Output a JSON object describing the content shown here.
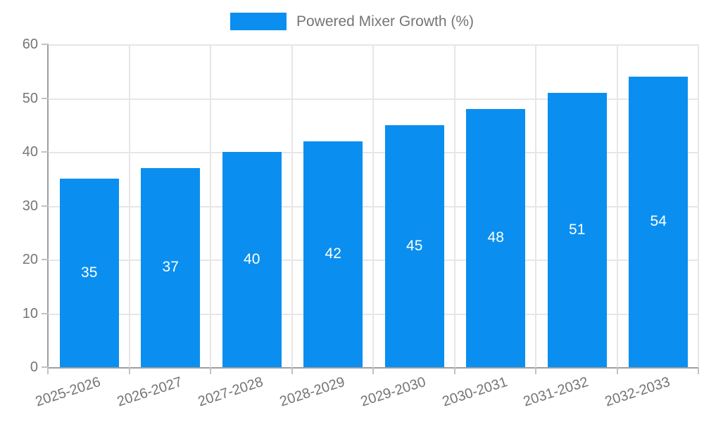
{
  "legend": {
    "label": "Powered Mixer Growth (%)"
  },
  "chart_data": {
    "type": "bar",
    "title": "",
    "xlabel": "",
    "ylabel": "",
    "categories": [
      "2025-2026",
      "2026-2027",
      "2027-2028",
      "2028-2029",
      "2029-2030",
      "2030-2031",
      "2031-2032",
      "2032-2033"
    ],
    "series": [
      {
        "name": "Powered Mixer Growth (%)",
        "values": [
          35,
          37,
          40,
          42,
          45,
          48,
          51,
          54
        ]
      }
    ],
    "ylim": [
      0,
      60
    ],
    "y_ticks": [
      0,
      10,
      20,
      30,
      40,
      50,
      60
    ],
    "grid": true,
    "legend_position": "top-center",
    "value_labels_position": "inside-center"
  },
  "colors": {
    "bar": "#0a8ff0",
    "axis": "#9e9e9e",
    "grid": "#e6e6e6",
    "tick": "#c2c2c2",
    "tick_label": "#757575",
    "value_label": "#ffffff"
  }
}
